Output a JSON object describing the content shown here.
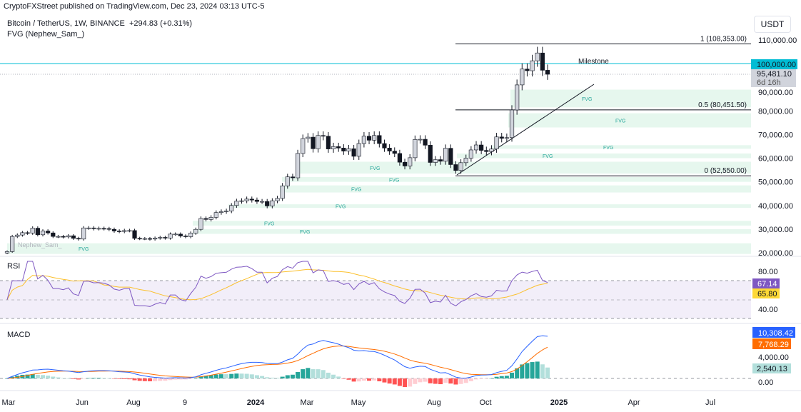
{
  "header": {
    "published": "CryptoFXStreet published on TradingView.com, Dec 23, 2024 03:13 UTC-5"
  },
  "legend": {
    "symbol": "Bitcoin / TetherUS, 1W, BINANCE",
    "change": "+294.83 (+0.31%)",
    "indicator": "FVG (Nephew_Sam_)"
  },
  "currency_button": "USDT",
  "colors": {
    "up": "#d1d4dc",
    "down": "#131722",
    "fvg": "#e6f7ee",
    "cyan": "#00bcd4",
    "rsi": "#7e57c2",
    "rsi_ma": "#fbc02d",
    "macd": "#2962ff",
    "signal": "#ff6d00"
  },
  "chart_data": {
    "type": "candlestick",
    "title": "Bitcoin / TetherUS, 1W, BINANCE",
    "closes_k": [
      20.5,
      26.9,
      27.5,
      28.5,
      28.3,
      30.4,
      27.6,
      29.2,
      28.4,
      26.9,
      26.9,
      26.7,
      27.2,
      26.1,
      25.8,
      30.5,
      30.5,
      30.2,
      30.3,
      30.2,
      29.9,
      29.2,
      29.0,
      29.4,
      29.4,
      26.1,
      26.0,
      26.0,
      25.8,
      26.2,
      26.5,
      26.2,
      27.9,
      27.9,
      27.1,
      26.8,
      28.3,
      29.9,
      34.5,
      34.1,
      35.0,
      37.0,
      37.4,
      37.7,
      40.0,
      41.8,
      42.0,
      42.7,
      42.3,
      41.7,
      41.7,
      39.8,
      42.0,
      43.0,
      48.3,
      52.1,
      51.7,
      62.0,
      68.3,
      68.9,
      64.0,
      69.6,
      69.3,
      63.9,
      64.9,
      64.3,
      63.0,
      64.0,
      60.8,
      66.2,
      69.3,
      67.6,
      69.6,
      66.2,
      64.3,
      63.0,
      62.0,
      58.3,
      56.7,
      60.2,
      67.9,
      68.0,
      65.5,
      58.2,
      59.4,
      58.7,
      64.2,
      57.3,
      54.8,
      58.1,
      60.0,
      63.5,
      65.6,
      63.3,
      62.8,
      63.9,
      69.0,
      68.4,
      68.7,
      80.4,
      91.0,
      97.7,
      97.0,
      101.2,
      104.5,
      97.2,
      95.5
    ],
    "price_axis": {
      "ticks": [
        "110,000.00",
        "90,000.00",
        "80,000.00",
        "70,000.00",
        "60,000.00",
        "50,000.00",
        "40,000.00",
        "30,000.00",
        "20,000.00"
      ],
      "ylim": [
        20000,
        110000
      ]
    },
    "last_price": "95,481.10",
    "countdown": "6d 16h",
    "milestone_price": "100,000.00",
    "milestone_label": "Milestone",
    "fib": [
      {
        "label": "1 (108,353.00)",
        "value": 108353
      },
      {
        "label": "0.5 (80,451.50)",
        "value": 80451.5
      },
      {
        "label": "0 (52,550.00)",
        "value": 52550
      }
    ],
    "fvg_zones_k": [
      [
        81.5,
        89
      ],
      [
        73,
        79
      ],
      [
        64,
        65.5
      ],
      [
        60,
        62
      ],
      [
        53.5,
        58.5
      ],
      [
        50,
        52
      ],
      [
        45.5,
        48.5
      ],
      [
        39,
        40.5
      ],
      [
        31.5,
        33.5
      ],
      [
        28,
        30
      ],
      [
        19.5,
        24
      ]
    ],
    "fvg_label": "FVG",
    "watermark": "Nephew_Sam_",
    "x_labels": [
      "Mar",
      "Jun",
      "Aug",
      "9",
      "2024",
      "Mar",
      "May",
      "Aug",
      "Oct",
      "2025",
      "Apr",
      "Jul"
    ],
    "rsi": {
      "label": "RSI",
      "ticks": [
        "80.00",
        "40.00"
      ],
      "value": "67.14",
      "ma_value": "65.80"
    },
    "macd": {
      "label": "MACD",
      "ticks": [
        "4,000.00",
        "0.00"
      ],
      "macd_value": "10,308.42",
      "signal_value": "7,768.29",
      "hist_value": "2,540.13"
    }
  }
}
